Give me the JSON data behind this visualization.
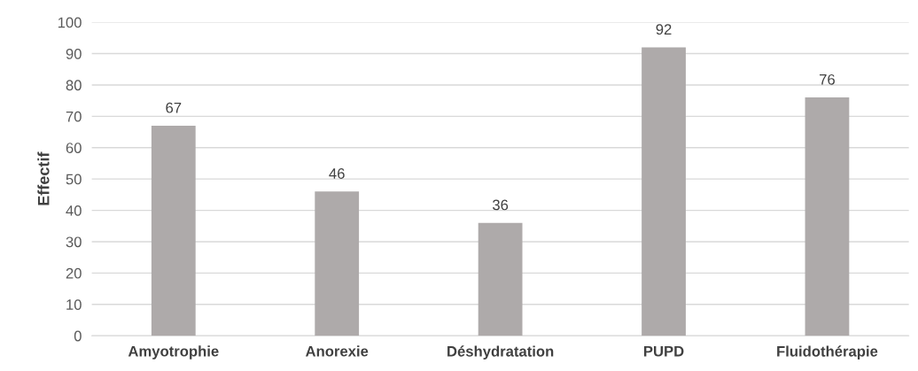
{
  "chart_data": {
    "type": "bar",
    "ylabel": "Effectif",
    "categories": [
      "Amyotrophie",
      "Anorexie",
      "Déshydratation",
      "PUPD",
      "Fluidothérapie"
    ],
    "values": [
      67,
      46,
      36,
      92,
      76
    ],
    "color": "#aeaaaa",
    "ylim": [
      0,
      100
    ],
    "yticks": [
      0,
      10,
      20,
      30,
      40,
      50,
      60,
      70,
      80,
      90,
      100
    ],
    "grid": "y",
    "data_labels": true
  }
}
